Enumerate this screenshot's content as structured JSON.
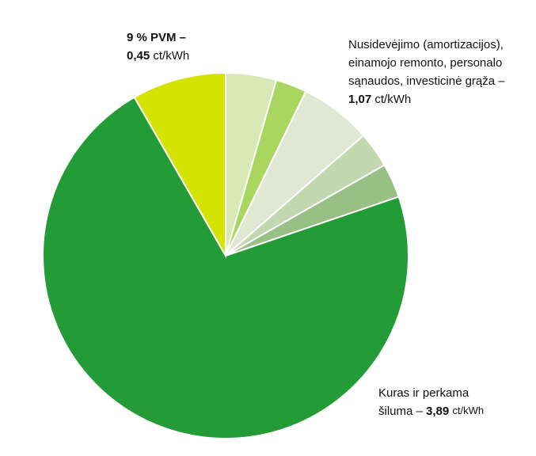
{
  "chart_data": {
    "type": "pie",
    "start_angle": 0,
    "direction": "clockwise",
    "values": [
      0.242,
      0.149,
      0.344,
      0.171,
      0.164,
      3.89,
      0.45
    ],
    "colors": [
      "#d9e9b5",
      "#a9d65e",
      "#e0e8d3",
      "#c3d7b1",
      "#98bf84",
      "#239c37",
      "#d5e300"
    ],
    "annotations": [
      {
        "lines": [
          "9 % PVM –"
        ],
        "value_label": "0,45",
        "value": 0.45,
        "unit": "ct/kWh"
      },
      {
        "lines": [
          "Nusidevėjimo (amortizacijos),",
          "einamojo remonto, personalo",
          "sąnaudos, investicinė grąža –"
        ],
        "value_label": "1,07",
        "value": 1.07,
        "unit": "ct/kWh"
      },
      {
        "lines": [
          "Kuras ir perkama",
          "šiluma –"
        ],
        "value_label": "3,89",
        "value": 3.89,
        "unit": "ct/kWh"
      }
    ]
  }
}
